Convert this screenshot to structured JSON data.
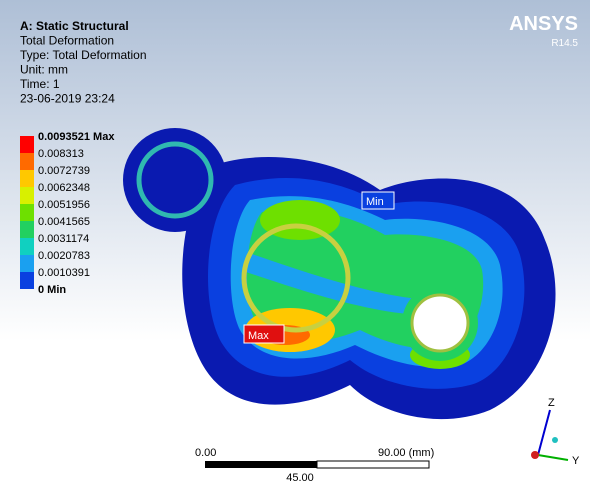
{
  "header": {
    "lines": [
      "A: Static Structural",
      "Total Deformation",
      "Type: Total Deformation",
      "Unit: mm",
      "Time: 1",
      "23-06-2019 23:24"
    ]
  },
  "logo": {
    "name": "ANSYS",
    "version": "R14.5"
  },
  "legend": {
    "items": [
      {
        "label": "0.0093521 Max",
        "color": "#ff0000"
      },
      {
        "label": "0.008313",
        "color": "#ff6a00"
      },
      {
        "label": "0.0072739",
        "color": "#ffc800"
      },
      {
        "label": "0.0062348",
        "color": "#d8f000"
      },
      {
        "label": "0.0051956",
        "color": "#6ee000"
      },
      {
        "label": "0.0041565",
        "color": "#22d060"
      },
      {
        "label": "0.0031174",
        "color": "#10d0c0"
      },
      {
        "label": "0.0020783",
        "color": "#1aa0f0"
      },
      {
        "label": "0.0010391",
        "color": "#0a40e0"
      },
      {
        "label": "0 Min"
      }
    ]
  },
  "probes": {
    "min": "Min",
    "max": "Max"
  },
  "scale_bar": {
    "start": "0.00",
    "end": "90.00 (mm)",
    "middle": "45.00"
  },
  "triad": {
    "z": "Z",
    "y": "Y"
  }
}
